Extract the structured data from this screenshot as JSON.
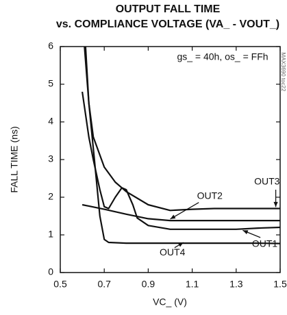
{
  "chart_data": {
    "type": "line",
    "title": "OUTPUT FALL TIME",
    "subtitle": "vs. COMPLIANCE VOLTAGE (VA_ - VOUT_)",
    "x_label": "VC_ (V)",
    "y_label": "FALL TIME (ns)",
    "annotation": "gs_ = 40h, os_ = FFh",
    "watermark": "MAX3690 toc22",
    "xlim": [
      0.5,
      1.5
    ],
    "ylim": [
      0,
      6
    ],
    "xticks": [
      0.5,
      0.7,
      0.9,
      1.1,
      1.3,
      1.5
    ],
    "yticks": [
      0,
      1,
      2,
      3,
      4,
      5,
      6
    ],
    "grid": false,
    "series": [
      {
        "name": "OUT1",
        "color": "#111111",
        "x": [
          0.6,
          0.63,
          0.65,
          0.68,
          0.7,
          0.72,
          0.75,
          0.78,
          0.8,
          0.83,
          0.85,
          0.9,
          1.0,
          1.1,
          1.2,
          1.3,
          1.4,
          1.5
        ],
        "values": [
          4.8,
          3.6,
          3.0,
          2.2,
          1.75,
          1.7,
          2.0,
          2.25,
          2.2,
          1.8,
          1.45,
          1.25,
          1.15,
          1.15,
          1.15,
          1.15,
          1.18,
          1.2
        ]
      },
      {
        "name": "OUT2",
        "color": "#111111",
        "x": [
          0.6,
          0.7,
          0.8,
          0.9,
          1.0,
          1.1,
          1.2,
          1.3,
          1.4,
          1.5
        ],
        "values": [
          1.8,
          1.68,
          1.55,
          1.43,
          1.38,
          1.38,
          1.38,
          1.38,
          1.38,
          1.38
        ]
      },
      {
        "name": "OUT3",
        "color": "#111111",
        "x": [
          0.615,
          0.63,
          0.65,
          0.7,
          0.75,
          0.8,
          0.9,
          1.0,
          1.1,
          1.2,
          1.3,
          1.4,
          1.5
        ],
        "values": [
          6,
          4.5,
          3.6,
          2.8,
          2.4,
          2.15,
          1.8,
          1.65,
          1.68,
          1.7,
          1.7,
          1.7,
          1.7
        ]
      },
      {
        "name": "OUT4",
        "color": "#111111",
        "x": [
          0.61,
          0.63,
          0.65,
          0.68,
          0.7,
          0.72,
          0.8,
          0.9,
          1.0,
          1.1,
          1.2,
          1.3,
          1.4,
          1.5
        ],
        "values": [
          6,
          4.5,
          3.3,
          1.5,
          0.88,
          0.8,
          0.78,
          0.78,
          0.78,
          0.78,
          0.78,
          0.78,
          0.78,
          0.77
        ]
      }
    ]
  }
}
